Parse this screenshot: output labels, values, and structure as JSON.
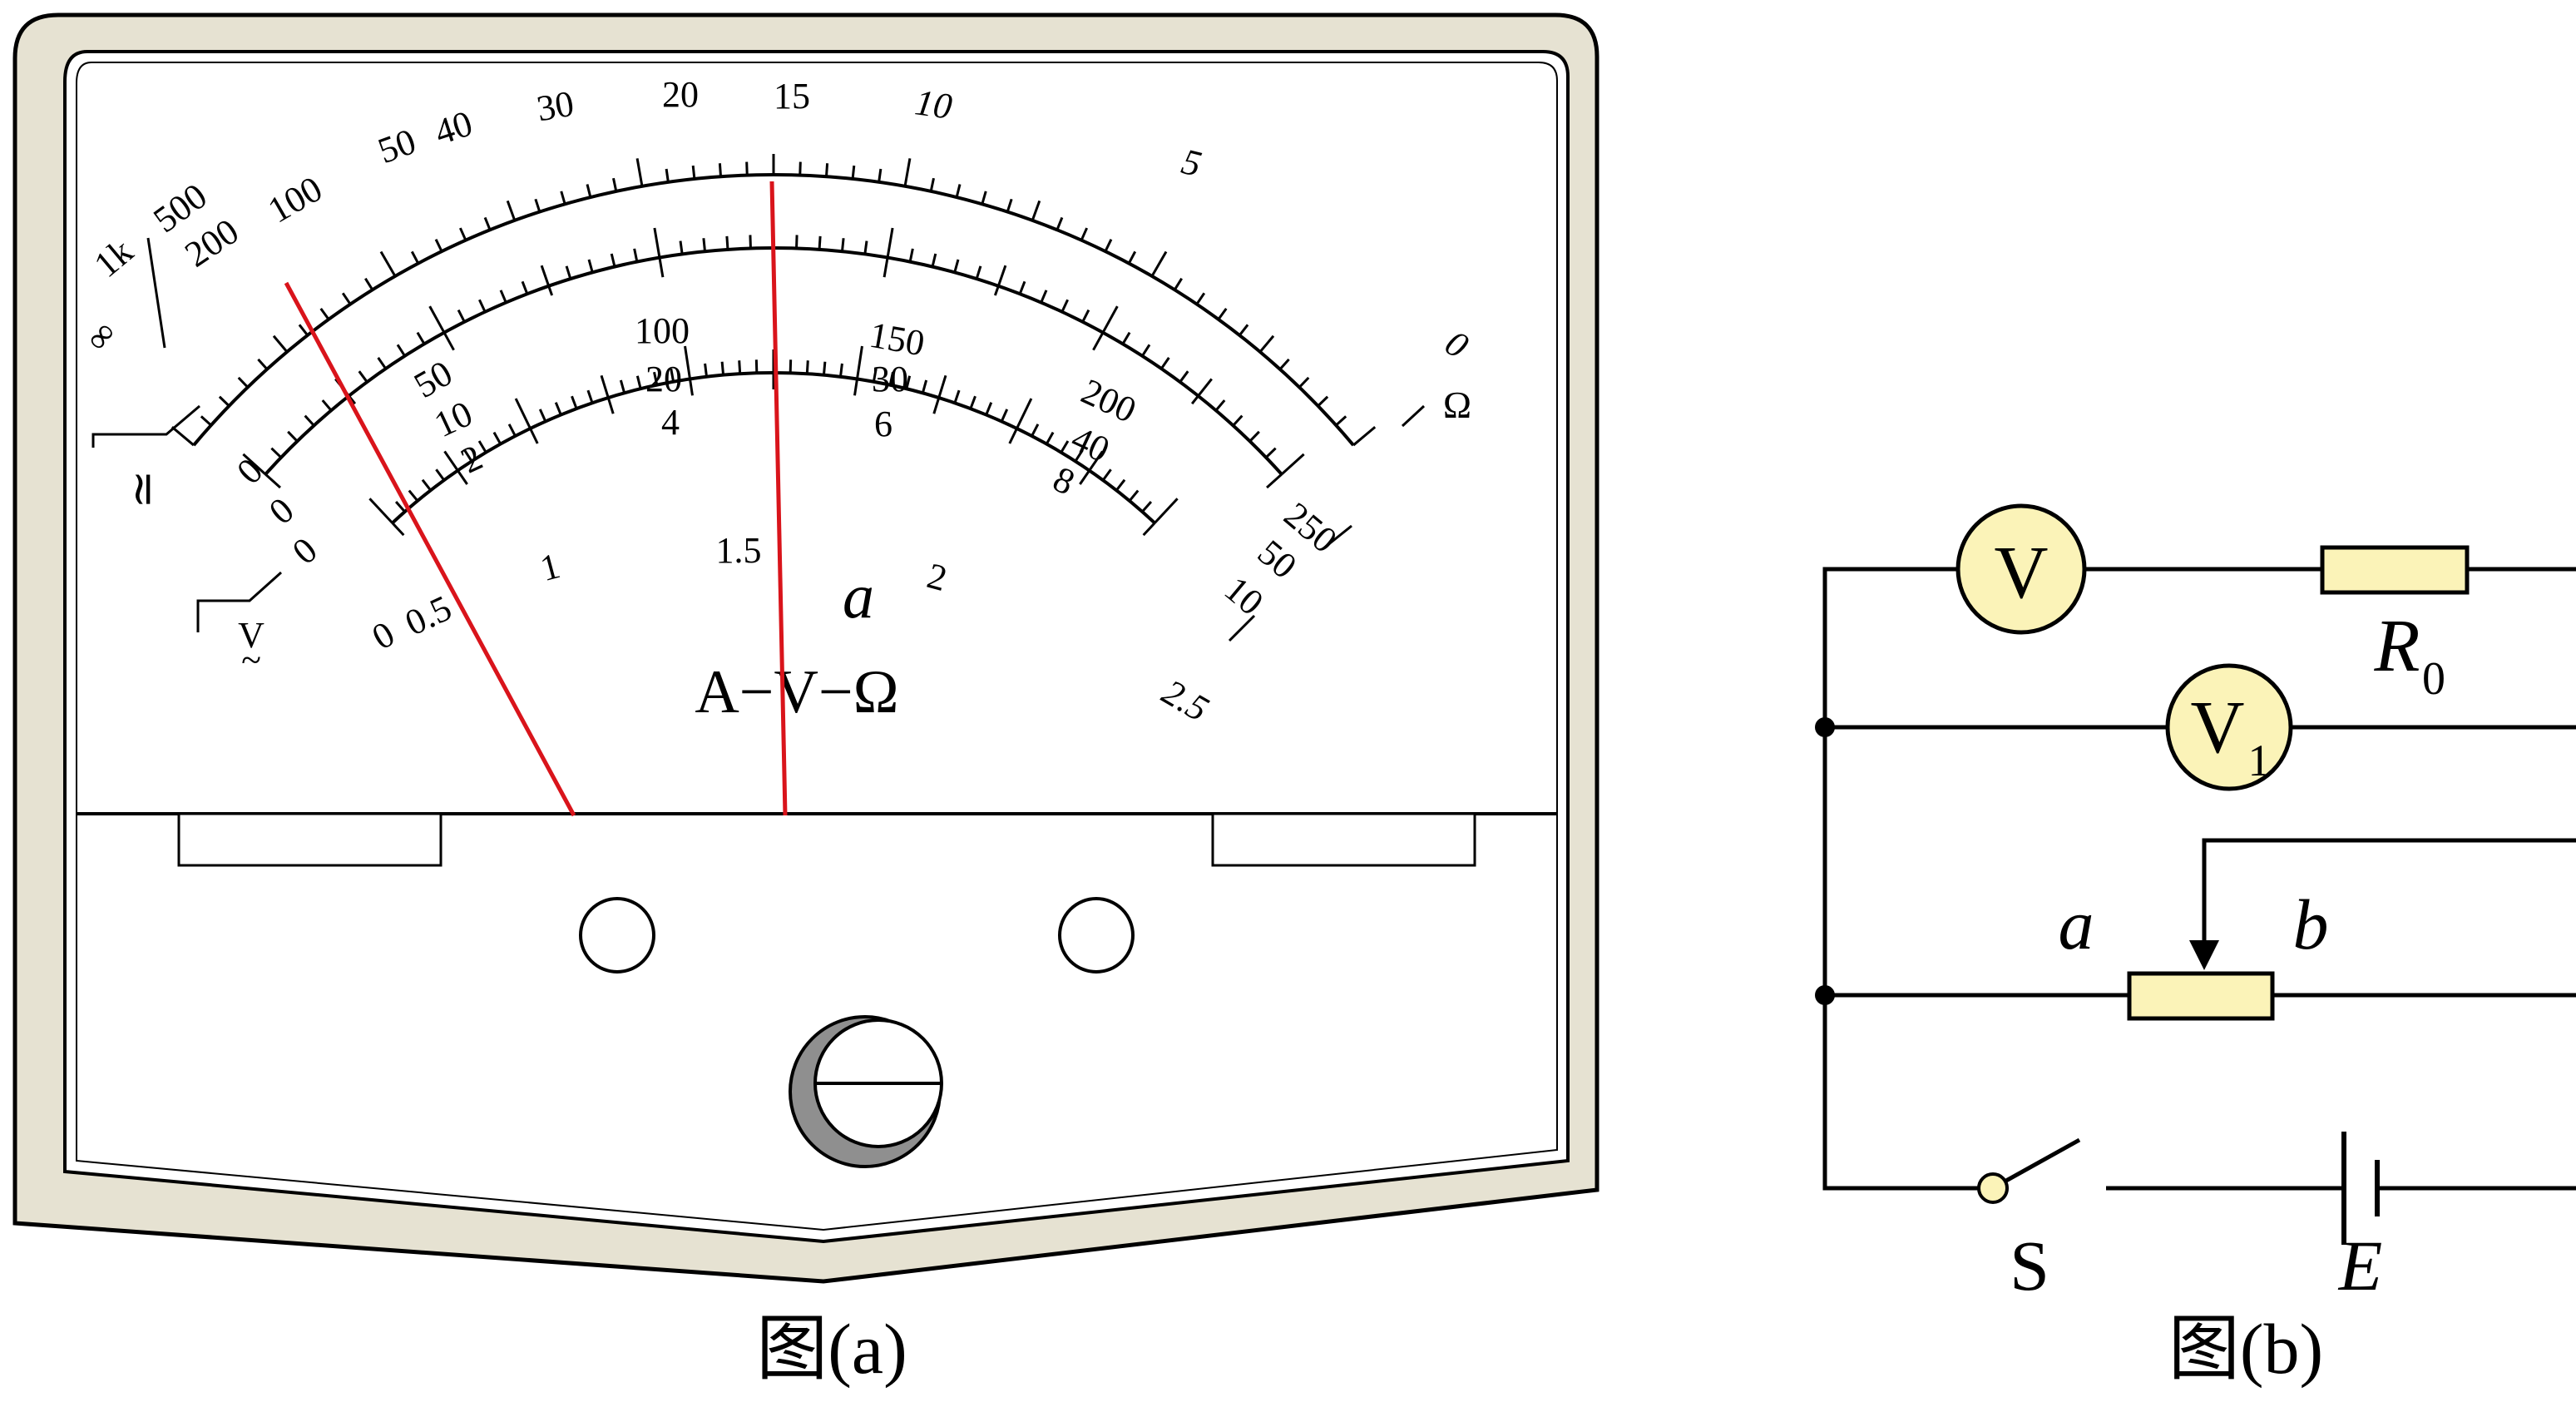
{
  "colors": {
    "case_fill": "#e6e2d2",
    "needle": "#d9141b",
    "component_fill": "#fbf3b8",
    "line": "#000000"
  },
  "meter": {
    "caption": "图(a)",
    "center_label": "A−V−Ω",
    "needle_letter": "a",
    "ohm_scale": {
      "labels": [
        "∞",
        "1k",
        "500",
        "200",
        "100",
        "50",
        "40",
        "30",
        "20",
        "15",
        "10",
        "5",
        "0"
      ],
      "unit": "Ω"
    },
    "dc_scale": {
      "row_250": [
        "0",
        "50",
        "100",
        "150",
        "200",
        "250"
      ],
      "row_50": [
        "0",
        "10",
        "20",
        "30",
        "40",
        "50"
      ],
      "row_10": [
        "0",
        "2",
        "4",
        "6",
        "8",
        "10"
      ],
      "symbol": "≃"
    },
    "ac_scale": {
      "labels": [
        "0",
        "0.5",
        "1",
        "1.5",
        "2",
        "2.5"
      ],
      "symbol_top": "V",
      "symbol_bottom": "~"
    },
    "needles": [
      {
        "name": "needle-left",
        "ohm_reading": "100"
      },
      {
        "name": "needle-right",
        "ohm_reading": "15"
      }
    ],
    "icons": [
      "adjust-screw-icon",
      "terminal-hole-left-icon",
      "terminal-hole-right-icon"
    ]
  },
  "circuit": {
    "caption": "图(b)",
    "voltmeter_V": "V",
    "voltmeter_V1": "V",
    "voltmeter_V1_subscript": "1",
    "resistor_R0_letter": "R",
    "resistor_R0_subscript": "0",
    "rheostat_end_a": "a",
    "rheostat_end_b": "b",
    "switch_label": "S",
    "battery_label": "E"
  }
}
